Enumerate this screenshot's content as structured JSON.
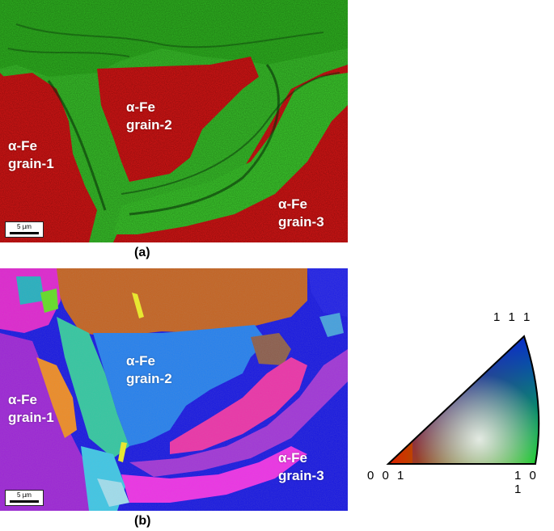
{
  "panel_a": {
    "caption": "(a)",
    "scalebar": "5 µm",
    "labels": {
      "grain1_line1": "α-Fe",
      "grain1_line2": "grain-1",
      "grain2_line1": "α-Fe",
      "grain2_line2": "grain-2",
      "grain3_line1": "α-Fe",
      "grain3_line2": "grain-3"
    }
  },
  "panel_b": {
    "caption": "(b)",
    "scalebar": "5 µm",
    "labels": {
      "grain1_line1": "α-Fe",
      "grain1_line2": "grain-1",
      "grain2_line1": "α-Fe",
      "grain2_line2": "grain-2",
      "grain3_line1": "α-Fe",
      "grain3_line2": "grain-3"
    }
  },
  "ipf_key": {
    "top_label": "1 1 1",
    "left_label": "0 0 1",
    "right_label": "1 0 1"
  },
  "colors": {
    "phase_map_red": "#e01818",
    "phase_map_green": "#33cc22",
    "ipf_purple": "#9b1fd6",
    "ipf_blue": "#1d6ef2",
    "ipf_deep_blue": "#1010e0",
    "ipf_magenta": "#f030c0",
    "ipf_brown": "#c0601a"
  }
}
